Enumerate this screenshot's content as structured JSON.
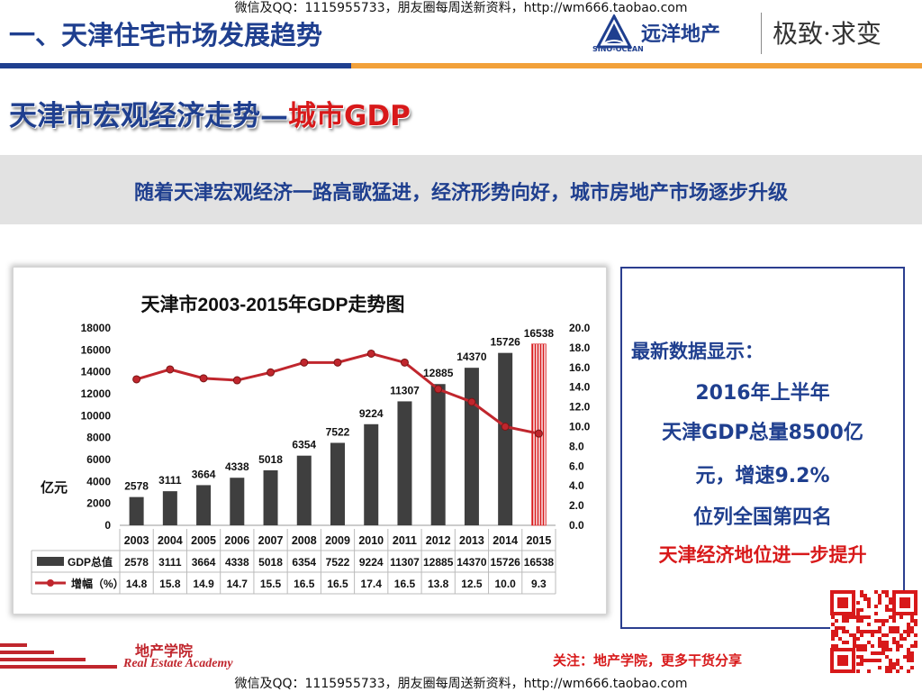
{
  "watermark": {
    "top": "微信及QQ：1115955733，朋友圈每周送新资料，http://wm666.taobao.com",
    "bottom": "微信及QQ：1115955733，朋友圈每周送新资料，http://wm666.taobao.com"
  },
  "header": {
    "title": "一、天津住宅市场发展趋势"
  },
  "logo": {
    "en": "SINO-OCEAN",
    "name": "远洋地产",
    "slogan": "极致·求变"
  },
  "subtitle": {
    "part1": "天津市宏观经济走势—",
    "part2": "城市GDP"
  },
  "banner": {
    "text": "随着天津宏观经济一路高歌猛进，经济形势向好，城市房地产市场逐步升级"
  },
  "chart_data": {
    "type": "bar",
    "title": "天津市2003-2015年GDP走势图",
    "categories": [
      "2003",
      "2004",
      "2005",
      "2006",
      "2007",
      "2008",
      "2009",
      "2010",
      "2011",
      "2012",
      "2013",
      "2014",
      "2015"
    ],
    "series": [
      {
        "name": "GDP总值",
        "type": "bar",
        "values": [
          2578,
          3111,
          3664,
          4338,
          5018,
          6354,
          7522,
          9224,
          11307,
          12885,
          14370,
          15726,
          16538
        ],
        "color": "#3f3f3f",
        "highlight_last_color": "#e8777b"
      },
      {
        "name": "增幅（%）",
        "type": "line",
        "axis": "right",
        "values": [
          14.8,
          15.8,
          14.9,
          14.7,
          15.5,
          16.5,
          16.5,
          17.4,
          16.5,
          13.8,
          12.5,
          10.0,
          9.3
        ],
        "color": "#c0262d"
      }
    ],
    "ylabel": "亿元",
    "ylim": [
      0,
      18000
    ],
    "yticks": [
      0,
      2000,
      4000,
      6000,
      8000,
      10000,
      12000,
      14000,
      16000,
      18000
    ],
    "y2lim": [
      0,
      20
    ],
    "y2ticks": [
      "0.0",
      "2.0",
      "4.0",
      "6.0",
      "8.0",
      "10.0",
      "12.0",
      "14.0",
      "16.0",
      "18.0",
      "20.0"
    ],
    "grid": false,
    "legend": "data-table below chart"
  },
  "info": {
    "heading": "最新数据显示：",
    "line1": "2016年上半年",
    "line2": "天津GDP总量8500亿",
    "line3": "元，增速9.2%",
    "line4": "位列全国第四名",
    "highlight": "天津经济地位进一步提升"
  },
  "footer": {
    "academy_cn": "地产学院",
    "academy_en": "Real Estate Academy",
    "note": "关注：地产学院，更多干货分享"
  },
  "colors": {
    "brand_blue": "#1f3f8f",
    "accent_orange": "#f2a13a",
    "accent_red": "#d8191a"
  }
}
